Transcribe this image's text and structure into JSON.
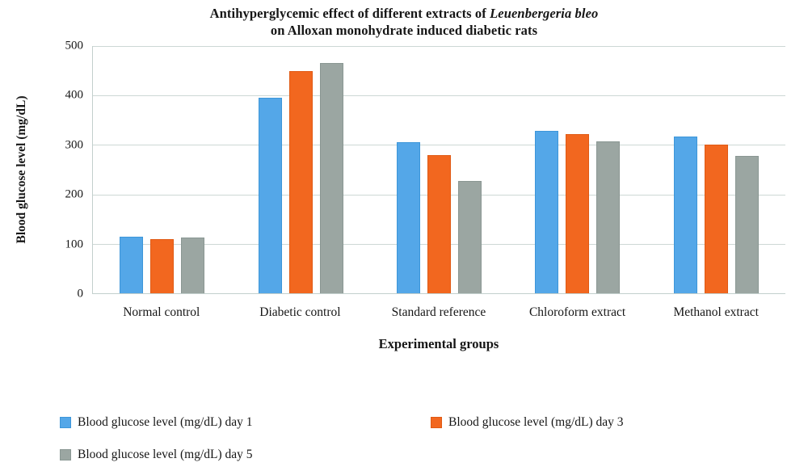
{
  "figure_title": {
    "line1_regular": "Antihyperglycemic effect of different extracts of ",
    "line1_italic": "Leuenbergeria bleo",
    "line2": "on Alloxan monohydrate induced diabetic rats"
  },
  "chart_data": {
    "type": "bar",
    "title": "Antihyperglycemic effect of different extracts of Leuenbergeria bleo on Alloxan monohydrate induced diabetic rats",
    "xlabel": "Experimental groups",
    "ylabel": "Blood glucose level (mg/dL)",
    "ylim": [
      0,
      500
    ],
    "yticks": [
      0,
      100,
      200,
      300,
      400,
      500
    ],
    "grid": true,
    "legend_position": "bottom",
    "categories": [
      "Normal control",
      "Diabetic control",
      "Standard reference",
      "Chloroform extract",
      "Methanol extract"
    ],
    "series": [
      {
        "name": "Blood glucose level (mg/dL) day 1",
        "color": "#54a7e8",
        "border_color": "#3d96d9",
        "values": [
          115,
          395,
          305,
          329,
          317
        ]
      },
      {
        "name": "Blood glucose level (mg/dL) day 3",
        "color": "#f2671f",
        "border_color": "#e05a14",
        "values": [
          110,
          450,
          280,
          322,
          300
        ]
      },
      {
        "name": "Blood glucose level (mg/dL) day 5",
        "color": "#9ba6a2",
        "border_color": "#8a9793",
        "values": [
          113,
          465,
          227,
          307,
          278
        ]
      }
    ]
  },
  "style_colors": {
    "gridline": "#cdd8d5",
    "axis_line": "#c3cfcd",
    "text": "#161616"
  }
}
